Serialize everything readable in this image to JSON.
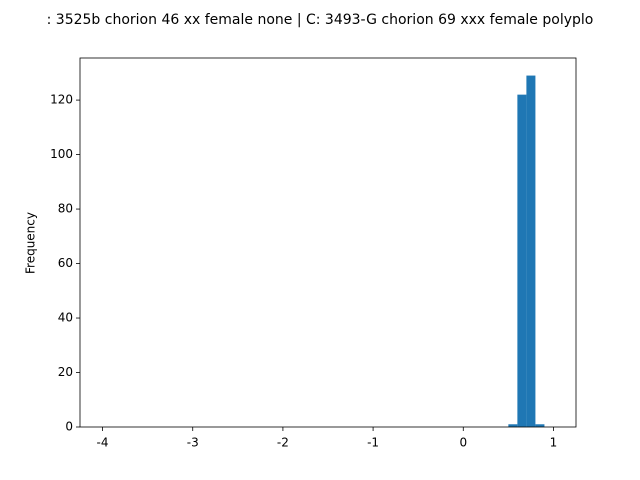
{
  "chart_data": {
    "type": "histogram",
    "title": ": 3525b chorion 46 xx female none | C: 3493-G chorion 69 xxx female polyplo",
    "ylabel": "Frequency",
    "color": "#1f77b4",
    "bins": [
      -4,
      -3.9,
      -3.8,
      -3.7,
      -3.6,
      -3.5,
      -3.4,
      -3.3,
      -3.2,
      -3.1,
      -3,
      -2.9,
      -2.8,
      -2.7,
      -2.6,
      -2.5,
      -2.4,
      -2.3,
      -2.2,
      -2.1,
      -2,
      -1.9,
      -1.8,
      -1.7,
      -1.6,
      -1.5,
      -1.4,
      -1.3,
      -1.2,
      -1.1,
      -1,
      -0.9,
      -0.8,
      -0.7,
      -0.6,
      -0.5,
      -0.4,
      -0.3,
      -0.2,
      -0.1,
      0,
      0.1,
      0.2,
      0.3,
      0.4,
      0.5,
      0.6,
      0.7,
      0.8,
      0.9,
      1
    ],
    "values": [
      0,
      0,
      0,
      0,
      0,
      0,
      0,
      0,
      0,
      0,
      0,
      0,
      0,
      0,
      0,
      0,
      0,
      0,
      0,
      0,
      0,
      0,
      0,
      0,
      0,
      0,
      0,
      0,
      0,
      0,
      0,
      0,
      0,
      0,
      0,
      0,
      0,
      0,
      0,
      0,
      0,
      0,
      0,
      0,
      0,
      1,
      122,
      129,
      1,
      0
    ],
    "xlim": [
      -4.25,
      1.25
    ],
    "xticks": [
      -4,
      -3,
      -2,
      -1,
      0,
      1
    ],
    "ylim": [
      0,
      135.45
    ],
    "yticks": [
      0,
      20,
      40,
      60,
      80,
      100,
      120
    ]
  }
}
